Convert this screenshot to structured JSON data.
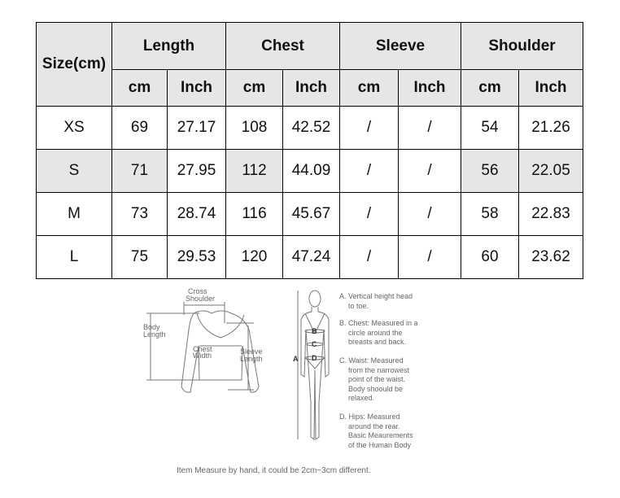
{
  "table": {
    "size_header": "Size(cm)",
    "groups": [
      "Length",
      "Chest",
      "Sleeve",
      "Shoulder"
    ],
    "units": [
      "cm",
      "Inch",
      "cm",
      "Inch",
      "cm",
      "Inch",
      "cm",
      "Inch"
    ],
    "rows": [
      [
        "XS",
        "69",
        "27.17",
        "108",
        "42.52",
        "/",
        "/",
        "54",
        "21.26"
      ],
      [
        "S",
        "71",
        "27.95",
        "112",
        "44.09",
        "/",
        "/",
        "56",
        "22.05"
      ],
      [
        "M",
        "73",
        "28.74",
        "116",
        "45.67",
        "/",
        "/",
        "58",
        "22.83"
      ],
      [
        "L",
        "75",
        "29.53",
        "120",
        "47.24",
        "/",
        "/",
        "60",
        "23.62"
      ]
    ],
    "header_bg": "#e6e6e6"
  },
  "diagram": {
    "garment_labels": {
      "cross_shoulder_1": "Cross",
      "cross_shoulder_2": "Shoulder",
      "body_length_1": "Body",
      "body_length_2": "Length",
      "chest_width_1": "Chest",
      "chest_width_2": "Width",
      "sleeve_length_1": "Sleeve",
      "sleeve_length_2": "Length"
    },
    "body_markers": [
      "A",
      "B",
      "C",
      "D"
    ],
    "captions": [
      [
        "A. Vertical height head",
        "to toe."
      ],
      [
        "B. Chest: Measured in a",
        "circle around the",
        "breasts and back."
      ],
      [
        "C. Waist: Measured",
        "from the narrowest",
        "point of the waist.",
        "Body shoould be",
        "relaxed."
      ],
      [
        "D. Hips: Measured",
        "around the rear.",
        "Basic Meaurements",
        "of the Human Body"
      ]
    ]
  },
  "note": "Item Measure by hand, it could be 2cm~3cm different."
}
